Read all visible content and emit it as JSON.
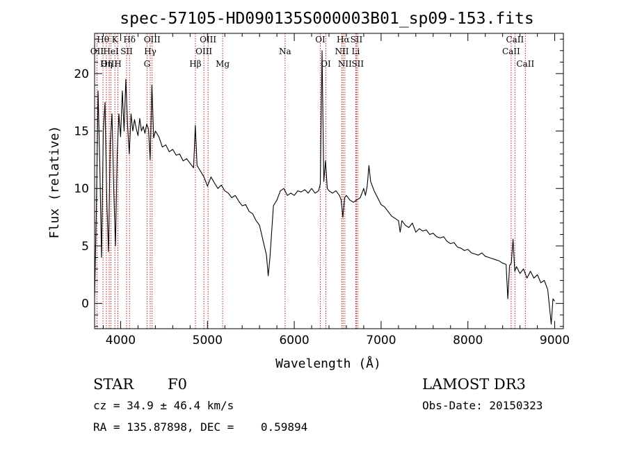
{
  "chart_data": {
    "type": "line",
    "title": "spec-57105-HD090135S000003B01_sp09-153.fits",
    "xlabel": "Wavelength (Å)",
    "ylabel": "Flux (relative)",
    "xlim": [
      3700,
      9100
    ],
    "ylim": [
      -2.2,
      23.5
    ],
    "xticks": [
      4000,
      5000,
      6000,
      7000,
      8000,
      9000
    ],
    "yticks": [
      0,
      5,
      10,
      15,
      20
    ],
    "x_minor_step": 200,
    "y_minor_step": 1,
    "series": [
      {
        "color": "#000000",
        "points": [
          [
            3700,
            0.5
          ],
          [
            3720,
            8.0
          ],
          [
            3740,
            18.5
          ],
          [
            3760,
            12.0
          ],
          [
            3780,
            4.0
          ],
          [
            3800,
            15.0
          ],
          [
            3820,
            17.5
          ],
          [
            3840,
            9.0
          ],
          [
            3860,
            4.5
          ],
          [
            3880,
            14.0
          ],
          [
            3900,
            16.5
          ],
          [
            3920,
            10.0
          ],
          [
            3940,
            5.0
          ],
          [
            3960,
            13.0
          ],
          [
            3980,
            16.5
          ],
          [
            4000,
            14.5
          ],
          [
            4020,
            18.5
          ],
          [
            4040,
            15.0
          ],
          [
            4060,
            19.5
          ],
          [
            4080,
            15.5
          ],
          [
            4100,
            13.0
          ],
          [
            4120,
            16.5
          ],
          [
            4140,
            15.0
          ],
          [
            4160,
            16.0
          ],
          [
            4180,
            15.2
          ],
          [
            4200,
            14.6
          ],
          [
            4220,
            16.1
          ],
          [
            4240,
            15.0
          ],
          [
            4260,
            15.4
          ],
          [
            4280,
            14.8
          ],
          [
            4300,
            15.6
          ],
          [
            4320,
            15.2
          ],
          [
            4340,
            12.5
          ],
          [
            4360,
            19.0
          ],
          [
            4380,
            14.4
          ],
          [
            4400,
            15.0
          ],
          [
            4440,
            14.5
          ],
          [
            4480,
            13.6
          ],
          [
            4520,
            13.8
          ],
          [
            4560,
            13.2
          ],
          [
            4600,
            13.4
          ],
          [
            4640,
            12.9
          ],
          [
            4680,
            13.0
          ],
          [
            4720,
            12.4
          ],
          [
            4760,
            12.6
          ],
          [
            4800,
            12.2
          ],
          [
            4840,
            11.8
          ],
          [
            4860,
            15.5
          ],
          [
            4880,
            12.0
          ],
          [
            4920,
            11.5
          ],
          [
            4960,
            11.0
          ],
          [
            5000,
            10.2
          ],
          [
            5040,
            11.0
          ],
          [
            5080,
            10.5
          ],
          [
            5120,
            10.0
          ],
          [
            5160,
            10.3
          ],
          [
            5200,
            9.8
          ],
          [
            5240,
            9.6
          ],
          [
            5280,
            9.2
          ],
          [
            5320,
            9.4
          ],
          [
            5360,
            8.9
          ],
          [
            5400,
            8.5
          ],
          [
            5440,
            8.6
          ],
          [
            5480,
            8.0
          ],
          [
            5520,
            7.8
          ],
          [
            5560,
            7.2
          ],
          [
            5600,
            6.8
          ],
          [
            5640,
            5.5
          ],
          [
            5680,
            4.2
          ],
          [
            5700,
            2.4
          ],
          [
            5720,
            4.0
          ],
          [
            5760,
            8.5
          ],
          [
            5800,
            9.0
          ],
          [
            5840,
            9.8
          ],
          [
            5880,
            10.0
          ],
          [
            5920,
            9.4
          ],
          [
            5960,
            9.6
          ],
          [
            6000,
            9.4
          ],
          [
            6040,
            9.8
          ],
          [
            6080,
            9.7
          ],
          [
            6120,
            9.9
          ],
          [
            6160,
            9.6
          ],
          [
            6200,
            10.0
          ],
          [
            6240,
            9.6
          ],
          [
            6280,
            9.8
          ],
          [
            6300,
            10.4
          ],
          [
            6320,
            22.0
          ],
          [
            6340,
            10.6
          ],
          [
            6360,
            12.4
          ],
          [
            6380,
            10.0
          ],
          [
            6400,
            9.8
          ],
          [
            6440,
            9.6
          ],
          [
            6480,
            9.8
          ],
          [
            6520,
            9.4
          ],
          [
            6540,
            9.0
          ],
          [
            6560,
            7.5
          ],
          [
            6580,
            9.2
          ],
          [
            6600,
            9.4
          ],
          [
            6640,
            9.0
          ],
          [
            6680,
            8.8
          ],
          [
            6720,
            9.0
          ],
          [
            6760,
            9.2
          ],
          [
            6780,
            9.6
          ],
          [
            6800,
            10.0
          ],
          [
            6820,
            9.4
          ],
          [
            6840,
            10.2
          ],
          [
            6860,
            12.0
          ],
          [
            6880,
            10.6
          ],
          [
            6920,
            9.8
          ],
          [
            6960,
            9.2
          ],
          [
            7000,
            8.6
          ],
          [
            7040,
            8.4
          ],
          [
            7080,
            8.0
          ],
          [
            7120,
            7.6
          ],
          [
            7160,
            7.4
          ],
          [
            7200,
            7.2
          ],
          [
            7220,
            6.2
          ],
          [
            7240,
            7.2
          ],
          [
            7280,
            6.8
          ],
          [
            7320,
            6.6
          ],
          [
            7360,
            7.0
          ],
          [
            7400,
            6.2
          ],
          [
            7440,
            6.5
          ],
          [
            7480,
            6.3
          ],
          [
            7520,
            6.4
          ],
          [
            7560,
            6.0
          ],
          [
            7600,
            6.1
          ],
          [
            7640,
            5.8
          ],
          [
            7680,
            5.7
          ],
          [
            7720,
            5.8
          ],
          [
            7760,
            5.4
          ],
          [
            7800,
            5.2
          ],
          [
            7840,
            5.3
          ],
          [
            7880,
            4.9
          ],
          [
            7920,
            4.8
          ],
          [
            7960,
            4.6
          ],
          [
            8000,
            4.7
          ],
          [
            8040,
            4.4
          ],
          [
            8080,
            4.3
          ],
          [
            8120,
            4.2
          ],
          [
            8160,
            4.4
          ],
          [
            8200,
            4.1
          ],
          [
            8240,
            4.0
          ],
          [
            8280,
            3.9
          ],
          [
            8320,
            3.8
          ],
          [
            8360,
            3.7
          ],
          [
            8400,
            3.5
          ],
          [
            8440,
            3.4
          ],
          [
            8460,
            0.4
          ],
          [
            8480,
            3.3
          ],
          [
            8500,
            3.5
          ],
          [
            8520,
            5.6
          ],
          [
            8540,
            2.8
          ],
          [
            8560,
            3.2
          ],
          [
            8600,
            2.6
          ],
          [
            8640,
            3.0
          ],
          [
            8680,
            2.2
          ],
          [
            8720,
            2.8
          ],
          [
            8760,
            2.2
          ],
          [
            8800,
            2.5
          ],
          [
            8840,
            1.8
          ],
          [
            8880,
            2.0
          ],
          [
            8920,
            1.2
          ],
          [
            8960,
            -1.8
          ],
          [
            8980,
            0.4
          ],
          [
            9000,
            0.2
          ]
        ]
      }
    ],
    "line_markers": [
      {
        "label": "Hθ",
        "wavelength": 3797,
        "row": 1
      },
      {
        "label": "OII",
        "wavelength": 3727,
        "row": 2
      },
      {
        "label": "OIII",
        "wavelength": 3869,
        "row": 3
      },
      {
        "label": "K",
        "wavelength": 3934,
        "row": 1
      },
      {
        "label": "HeI",
        "wavelength": 3889,
        "row": 2
      },
      {
        "label": "Hη",
        "wavelength": 3835,
        "row": 3
      },
      {
        "label": "H",
        "wavelength": 3968,
        "row": 3
      },
      {
        "label": "Hδ",
        "wavelength": 4102,
        "row": 1
      },
      {
        "label": "SII",
        "wavelength": 4069,
        "row": 2
      },
      {
        "label": "OIII",
        "wavelength": 4363,
        "row": 1
      },
      {
        "label": "Hγ",
        "wavelength": 4341,
        "row": 2
      },
      {
        "label": "G",
        "wavelength": 4304,
        "row": 3
      },
      {
        "label": "Hβ",
        "wavelength": 4861,
        "row": 3
      },
      {
        "label": "OIII",
        "wavelength": 5007,
        "row": 1
      },
      {
        "label": "OIII",
        "wavelength": 4959,
        "row": 2
      },
      {
        "label": "Mg",
        "wavelength": 5175,
        "row": 3
      },
      {
        "label": "Na",
        "wavelength": 5894,
        "row": 2
      },
      {
        "label": "OI",
        "wavelength": 6300,
        "row": 1
      },
      {
        "label": "OI",
        "wavelength": 6364,
        "row": 3
      },
      {
        "label": "Hα",
        "wavelength": 6563,
        "row": 1
      },
      {
        "label": "NII",
        "wavelength": 6548,
        "row": 2
      },
      {
        "label": "NII",
        "wavelength": 6583,
        "row": 3
      },
      {
        "label": "SII",
        "wavelength": 6716,
        "row": 1
      },
      {
        "label": "Li",
        "wavelength": 6708,
        "row": 2
      },
      {
        "label": "SII",
        "wavelength": 6731,
        "row": 3
      },
      {
        "label": "CaII",
        "wavelength": 8542,
        "row": 1
      },
      {
        "label": "CaII",
        "wavelength": 8498,
        "row": 2
      },
      {
        "label": "CaII",
        "wavelength": 8662,
        "row": 3
      }
    ]
  },
  "footer": {
    "object_class": "STAR",
    "subclass": "F0",
    "survey": "LAMOST DR3",
    "redshift": "cz = 34.9 ± 46.4 km/s",
    "obs_date": "Obs-Date: 20150323",
    "coords": "RA = 135.87898, DEC =    0.59894"
  }
}
